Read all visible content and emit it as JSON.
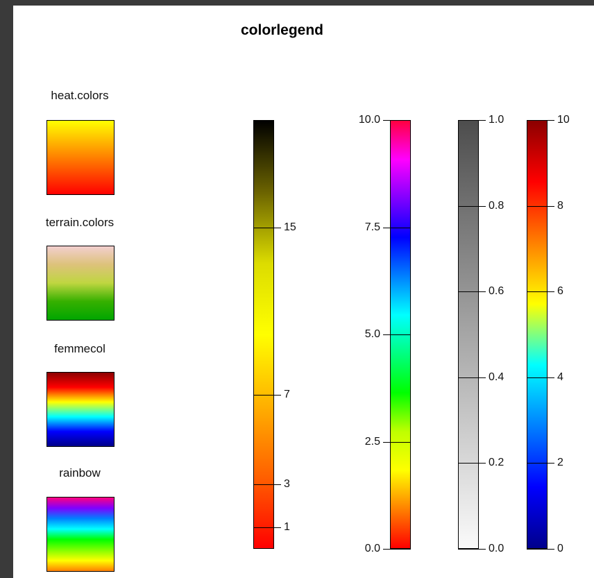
{
  "title": "colorlegend",
  "swatches": [
    {
      "label": "heat.colors",
      "gradient": [
        "#FFFF00",
        "#FF8000",
        "#FF0000"
      ]
    },
    {
      "label": "terrain.colors",
      "gradient": [
        "#F2CFCF",
        "#DDC27A",
        "#BFD640",
        "#36B000",
        "#00A600"
      ]
    },
    {
      "label": "femmecol",
      "gradient": [
        "#8B0000",
        "#FF0000",
        "#FFFF00",
        "#00FFFF",
        "#0000FF",
        "#00008B"
      ]
    },
    {
      "label": "rainbow",
      "gradient": [
        "#FF0080",
        "#8000FF",
        "#0080FF",
        "#00FFFF",
        "#00FF00",
        "#80FF00",
        "#FFFF00",
        "#FF8000"
      ]
    }
  ],
  "bars": [
    {
      "name": "heat-scale",
      "gradient": [
        "#000000",
        "#6B6300",
        "#DCDC00",
        "#FFFF00",
        "#FFB000",
        "#FF6000",
        "#FF0000"
      ],
      "ticks": [
        {
          "label": "15",
          "value": 0.75
        },
        {
          "label": "7",
          "value": 0.36
        },
        {
          "label": "3",
          "value": 0.15
        },
        {
          "label": "1",
          "value": 0.05
        }
      ],
      "side": "right"
    },
    {
      "name": "rainbow-scale",
      "gradient": [
        "#FF0040",
        "#FF00FF",
        "#8000FF",
        "#0000FF",
        "#0080FF",
        "#00FFFF",
        "#00FF80",
        "#00FF00",
        "#BFFF00",
        "#FFFF00",
        "#FF8000",
        "#FF0000"
      ],
      "ticks": [
        {
          "label": "10.0",
          "value": 1.0
        },
        {
          "label": "7.5",
          "value": 0.75
        },
        {
          "label": "5.0",
          "value": 0.5
        },
        {
          "label": "2.5",
          "value": 0.25
        },
        {
          "label": "0.0",
          "value": 0.0
        }
      ],
      "side": "left"
    },
    {
      "name": "gray-scale",
      "gradient": [
        "#4D4D4D",
        "#7A7A7A",
        "#A6A6A6",
        "#D0D0D0",
        "#FAFAFA"
      ],
      "ticks": [
        {
          "label": "1.0",
          "value": 1.0
        },
        {
          "label": "0.8",
          "value": 0.8
        },
        {
          "label": "0.6",
          "value": 0.6
        },
        {
          "label": "0.4",
          "value": 0.4
        },
        {
          "label": "0.2",
          "value": 0.2
        },
        {
          "label": "0.0",
          "value": 0.0
        }
      ],
      "side": "right"
    },
    {
      "name": "femme-scale",
      "gradient": [
        "#8B0000",
        "#FF0000",
        "#FF8000",
        "#FFFF00",
        "#00FFFF",
        "#0080FF",
        "#0000FF",
        "#00008B"
      ],
      "ticks": [
        {
          "label": "10",
          "value": 1.0
        },
        {
          "label": "8",
          "value": 0.8
        },
        {
          "label": "6",
          "value": 0.6
        },
        {
          "label": "4",
          "value": 0.4
        },
        {
          "label": "2",
          "value": 0.2
        },
        {
          "label": "0",
          "value": 0.0
        }
      ],
      "side": "right"
    }
  ]
}
